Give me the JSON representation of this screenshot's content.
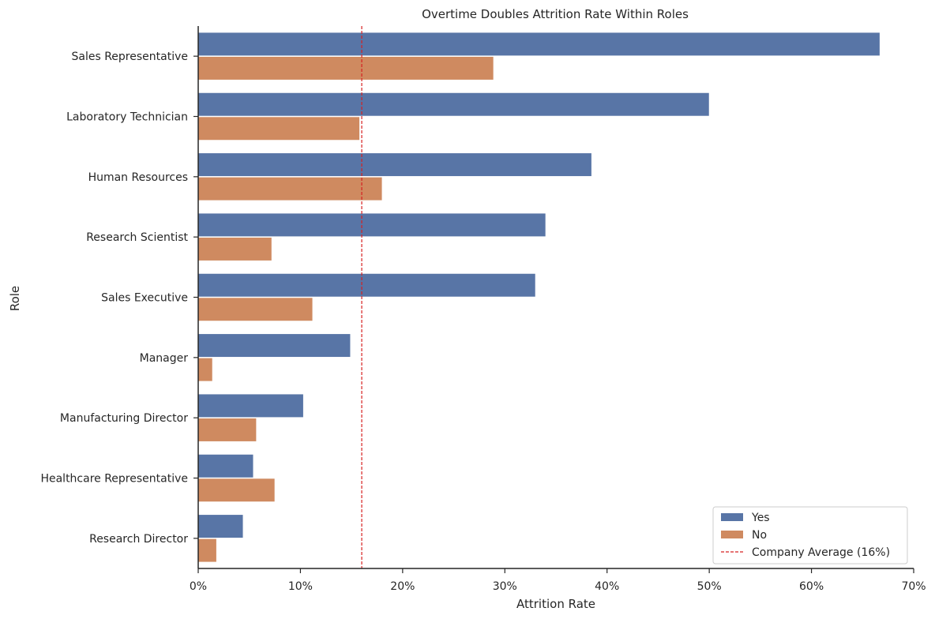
{
  "chart_data": {
    "type": "bar",
    "orientation": "horizontal",
    "title": "Overtime Doubles Attrition Rate Within Roles",
    "xlabel": "Attrition Rate",
    "ylabel": "Role",
    "xlim": [
      0,
      0.7
    ],
    "x_ticks": [
      0,
      0.1,
      0.2,
      0.3,
      0.4,
      0.5,
      0.6,
      0.7
    ],
    "x_tick_labels": [
      "0%",
      "10%",
      "20%",
      "30%",
      "40%",
      "50%",
      "60%",
      "70%"
    ],
    "categories": [
      "Sales Representative",
      "Laboratory Technician",
      "Human Resources",
      "Research Scientist",
      "Sales Executive",
      "Manager",
      "Manufacturing Director",
      "Healthcare Representative",
      "Research Director"
    ],
    "series": [
      {
        "name": "Yes",
        "color": "#5875a6",
        "values": [
          0.667,
          0.5,
          0.385,
          0.34,
          0.33,
          0.149,
          0.103,
          0.054,
          0.044
        ]
      },
      {
        "name": "No",
        "color": "#cf8a60",
        "values": [
          0.289,
          0.158,
          0.18,
          0.072,
          0.112,
          0.014,
          0.057,
          0.075,
          0.018
        ]
      }
    ],
    "reference_line": {
      "value": 0.16,
      "label": "Company Average (16%)",
      "color": "#d62020",
      "style": "dashed"
    },
    "grid": false,
    "legend_position": "lower-right"
  }
}
